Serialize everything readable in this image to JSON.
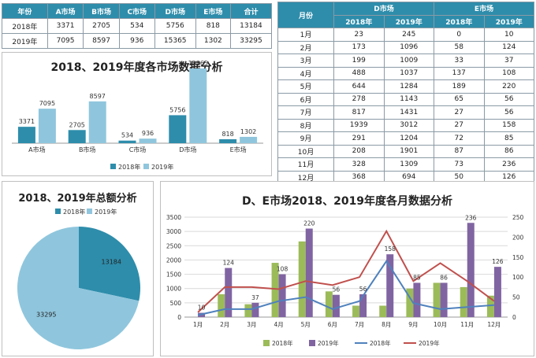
{
  "table1": {
    "headers": [
      "年份",
      "A市场",
      "B市场",
      "C市场",
      "D市场",
      "E市场",
      "合计"
    ],
    "rows": [
      [
        "2018年",
        "3371",
        "2705",
        "534",
        "5756",
        "818",
        "13184"
      ],
      [
        "2019年",
        "7095",
        "8597",
        "936",
        "15365",
        "1302",
        "33295"
      ]
    ]
  },
  "table2": {
    "month_header": "月份",
    "group_headers": [
      "D市场",
      "E市场"
    ],
    "year_headers": [
      "2018年",
      "2019年",
      "2018年",
      "2019年"
    ],
    "rows": [
      [
        "1月",
        "23",
        "245",
        "0",
        "10"
      ],
      [
        "2月",
        "173",
        "1096",
        "58",
        "124"
      ],
      [
        "3月",
        "199",
        "1009",
        "33",
        "37"
      ],
      [
        "4月",
        "488",
        "1037",
        "137",
        "108"
      ],
      [
        "5月",
        "644",
        "1284",
        "189",
        "220"
      ],
      [
        "6月",
        "278",
        "1143",
        "65",
        "56"
      ],
      [
        "7月",
        "817",
        "1431",
        "27",
        "56"
      ],
      [
        "8月",
        "1939",
        "3012",
        "27",
        "158"
      ],
      [
        "9月",
        "291",
        "1204",
        "72",
        "85"
      ],
      [
        "10月",
        "208",
        "1901",
        "87",
        "86"
      ],
      [
        "11月",
        "328",
        "1309",
        "73",
        "236"
      ],
      [
        "12月",
        "368",
        "694",
        "50",
        "126"
      ]
    ]
  },
  "chart_data": [
    {
      "type": "bar",
      "title": "2018、2019年度各市场数据分析",
      "categories": [
        "A市场",
        "B市场",
        "C市场",
        "D市场",
        "E市场"
      ],
      "series": [
        {
          "name": "2018年",
          "values": [
            3371,
            2705,
            534,
            5756,
            818
          ],
          "color": "#2e8dab"
        },
        {
          "name": "2019年",
          "values": [
            7095,
            8597,
            936,
            15365,
            1302
          ],
          "color": "#8fc6dd"
        }
      ],
      "legend": "bottom",
      "grid": false
    },
    {
      "type": "pie",
      "title": "2018、2019年总额分析",
      "labels": [
        "2018年",
        "2019年"
      ],
      "values": [
        13184,
        33295
      ],
      "colors": [
        "#2e8dab",
        "#8fc6dd"
      ],
      "legend": "top"
    },
    {
      "type": "bar",
      "title": "D、E市场2018、2019年度各月数据分析",
      "categories": [
        "1月",
        "2月",
        "3月",
        "4月",
        "5月",
        "6月",
        "7月",
        "8月",
        "9月",
        "10月",
        "11月",
        "12月"
      ],
      "y_left": {
        "min": 0,
        "max": 3500,
        "ticks": [
          0,
          500,
          1000,
          1500,
          2000,
          2500,
          3000,
          3500
        ]
      },
      "y_right": {
        "min": 0,
        "max": 250,
        "ticks": [
          0,
          50,
          100,
          150,
          200,
          250
        ]
      },
      "bar_series": [
        {
          "name": "2018年",
          "axis": "left",
          "values": [
            23,
            173,
            199,
            488,
            644,
            278,
            817,
            1939,
            291,
            208,
            328,
            368
          ],
          "color": "#9bbb59"
        },
        {
          "name": "2019年",
          "axis": "left",
          "values": [
            245,
            1096,
            1009,
            1037,
            1284,
            1143,
            1431,
            3012,
            1204,
            1901,
            1309,
            694
          ],
          "color": "#8064a2"
        }
      ],
      "bar_series_visual": [
        {
          "name": "2018年",
          "values": [
            0,
            800,
            450,
            1900,
            2650,
            900,
            400,
            400,
            1000,
            1200,
            1050,
            750
          ]
        },
        {
          "name": "2019年",
          "values": [
            150,
            1720,
            500,
            1500,
            3100,
            780,
            800,
            2200,
            1200,
            1200,
            3300,
            1760
          ]
        }
      ],
      "line_series": [
        {
          "name": "2018年",
          "axis": "right",
          "values": [
            5,
            20,
            20,
            40,
            50,
            20,
            40,
            140,
            35,
            20,
            25,
            30
          ],
          "color": "#4f81bd"
        },
        {
          "name": "2019年",
          "axis": "right",
          "values": [
            12,
            75,
            75,
            70,
            90,
            80,
            100,
            215,
            90,
            135,
            90,
            40
          ],
          "color": "#c0504d"
        }
      ],
      "data_labels": [
        10,
        124,
        37,
        108,
        220,
        56,
        56,
        158,
        85,
        86,
        236,
        126
      ],
      "legend": "bottom",
      "grid": true
    }
  ]
}
